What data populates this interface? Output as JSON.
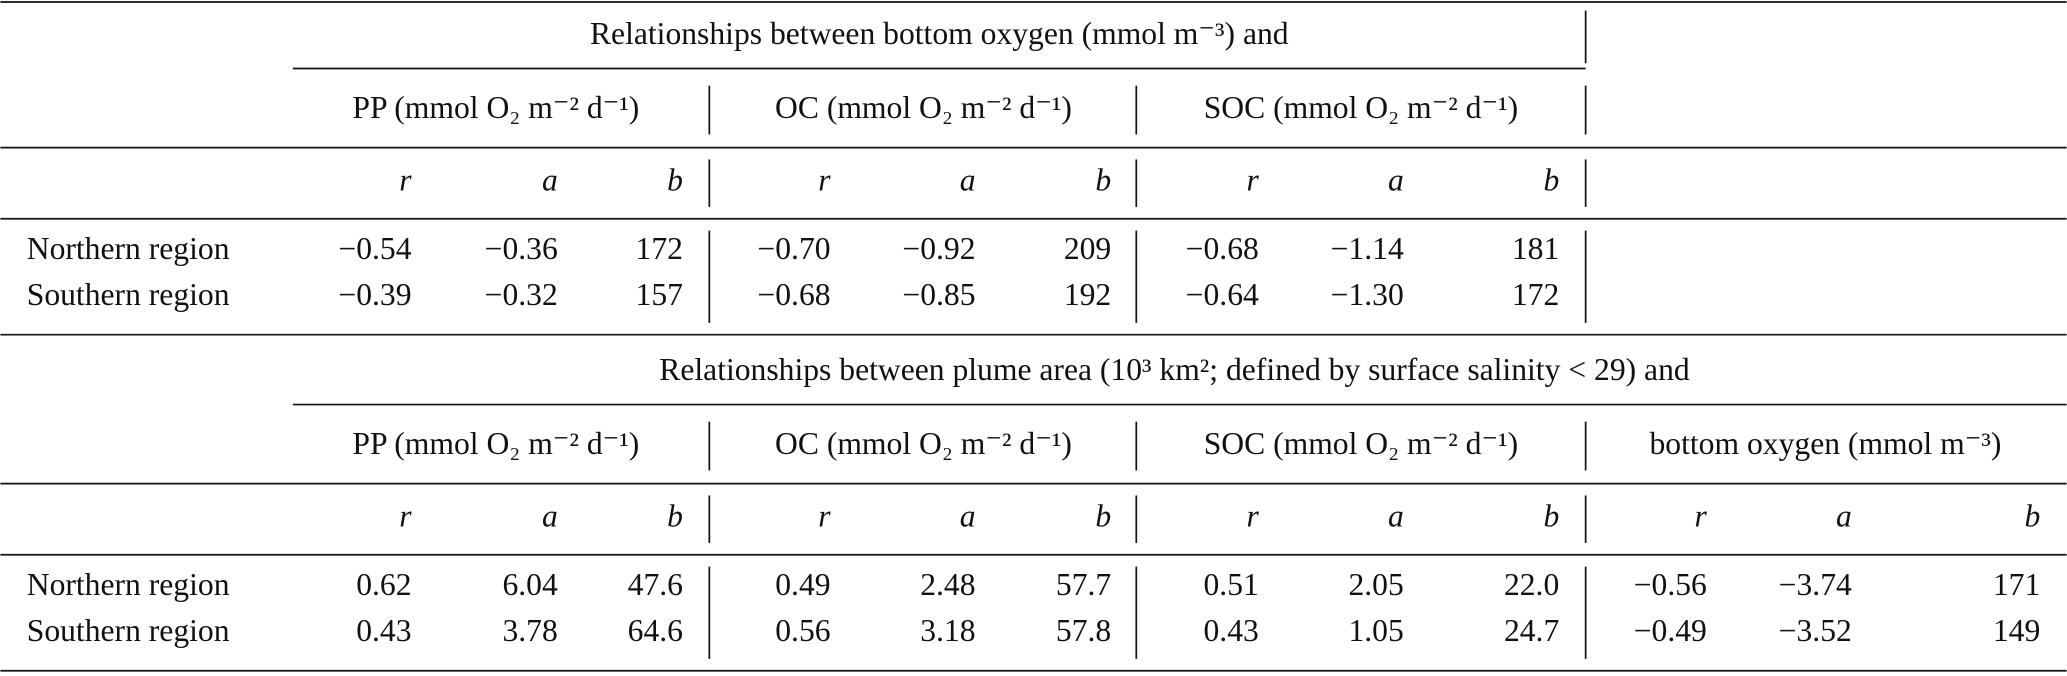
{
  "sections": [
    {
      "title": "Relationships between bottom oxygen (mmol m⁻³) and",
      "groups": [
        {
          "label": "PP (mmol O₂ m⁻² d⁻¹)",
          "columns": [
            "r",
            "a",
            "b"
          ]
        },
        {
          "label": "OC (mmol O₂ m⁻² d⁻¹)",
          "columns": [
            "r",
            "a",
            "b"
          ]
        },
        {
          "label": "SOC (mmol O₂ m⁻² d⁻¹)",
          "columns": [
            "r",
            "a",
            "b"
          ]
        }
      ],
      "rows": [
        {
          "label": "Northern region",
          "cells": [
            "−0.54",
            "−0.36",
            "172",
            "−0.70",
            "−0.92",
            "209",
            "−0.68",
            "−1.14",
            "181"
          ]
        },
        {
          "label": "Southern region",
          "cells": [
            "−0.39",
            "−0.32",
            "157",
            "−0.68",
            "−0.85",
            "192",
            "−0.64",
            "−1.30",
            "172"
          ]
        }
      ]
    },
    {
      "title": "Relationships between plume area (10³ km²; defined by surface salinity < 29) and",
      "groups": [
        {
          "label": "PP (mmol O₂ m⁻² d⁻¹)",
          "columns": [
            "r",
            "a",
            "b"
          ]
        },
        {
          "label": "OC (mmol O₂ m⁻² d⁻¹)",
          "columns": [
            "r",
            "a",
            "b"
          ]
        },
        {
          "label": "SOC (mmol O₂ m⁻² d⁻¹)",
          "columns": [
            "r",
            "a",
            "b"
          ]
        },
        {
          "label": "bottom oxygen (mmol m⁻³)",
          "columns": [
            "r",
            "a",
            "b"
          ]
        }
      ],
      "rows": [
        {
          "label": "Northern region",
          "cells": [
            "0.62",
            "6.04",
            "47.6",
            "0.49",
            "2.48",
            "57.7",
            "0.51",
            "2.05",
            "22.0",
            "−0.56",
            "−3.74",
            "171"
          ]
        },
        {
          "label": "Southern region",
          "cells": [
            "0.43",
            "3.78",
            "64.6",
            "0.56",
            "3.18",
            "57.8",
            "0.43",
            "1.05",
            "24.7",
            "−0.49",
            "−3.52",
            "149"
          ]
        }
      ]
    }
  ]
}
